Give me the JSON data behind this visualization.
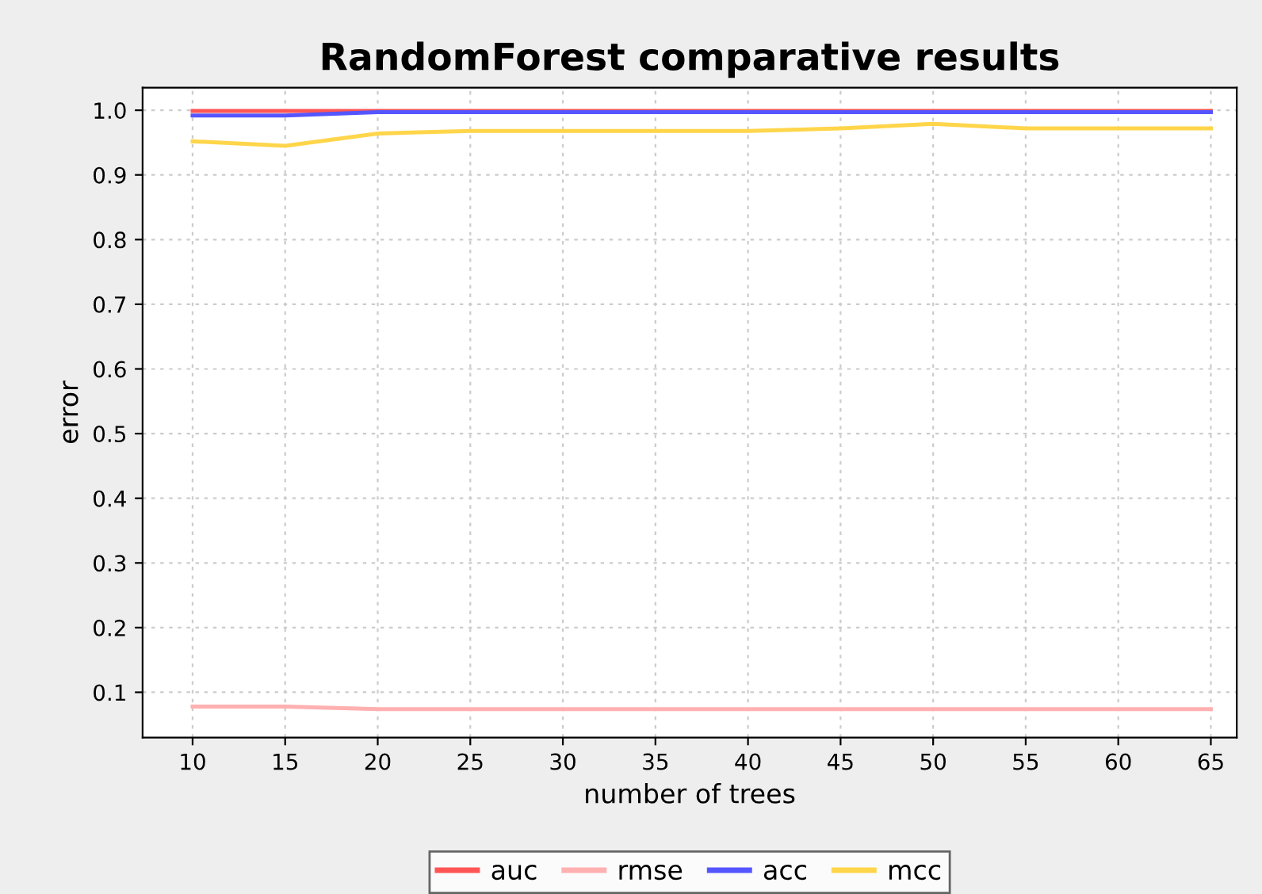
{
  "chart_data": {
    "type": "line",
    "title": "RandomForest comparative results",
    "xlabel": "number of trees",
    "ylabel": "error",
    "x": [
      10,
      15,
      20,
      25,
      30,
      35,
      40,
      45,
      50,
      55,
      60,
      65
    ],
    "series": [
      {
        "name": "auc",
        "color": "#ff5555",
        "values": [
          0.999,
          0.999,
          0.999,
          0.999,
          0.999,
          0.999,
          0.999,
          0.999,
          0.999,
          0.999,
          0.999,
          0.999
        ]
      },
      {
        "name": "rmse",
        "color": "#ffb0b0",
        "values": [
          0.078,
          0.078,
          0.074,
          0.074,
          0.074,
          0.074,
          0.074,
          0.074,
          0.074,
          0.074,
          0.074,
          0.074
        ]
      },
      {
        "name": "acc",
        "color": "#5555ff",
        "values": [
          0.992,
          0.992,
          0.997,
          0.997,
          0.997,
          0.997,
          0.997,
          0.997,
          0.997,
          0.997,
          0.997,
          0.997
        ]
      },
      {
        "name": "mcc",
        "color": "#ffd54a",
        "values": [
          0.952,
          0.945,
          0.964,
          0.968,
          0.968,
          0.968,
          0.968,
          0.972,
          0.979,
          0.972,
          0.972,
          0.972
        ]
      }
    ],
    "xlim": [
      7.3,
      66.4
    ],
    "ylim": [
      0.03,
      1.035
    ],
    "xticks": [
      10,
      15,
      20,
      25,
      30,
      35,
      40,
      45,
      50,
      55,
      60,
      65
    ],
    "yticks": [
      {
        "value": 0.1,
        "label": "0.1"
      },
      {
        "value": 0.2,
        "label": "0.2"
      },
      {
        "value": 0.3,
        "label": "0.3"
      },
      {
        "value": 0.4,
        "label": "0.4"
      },
      {
        "value": 0.5,
        "label": "0.5"
      },
      {
        "value": 0.6,
        "label": "0.6"
      },
      {
        "value": 0.7,
        "label": "0.7"
      },
      {
        "value": 0.8,
        "label": "0.8"
      },
      {
        "value": 0.9,
        "label": "0.9"
      },
      {
        "value": 1.0,
        "label": "1.0"
      }
    ],
    "grid": true,
    "legend": "bottom",
    "line_style": "solid",
    "marker": "none"
  }
}
